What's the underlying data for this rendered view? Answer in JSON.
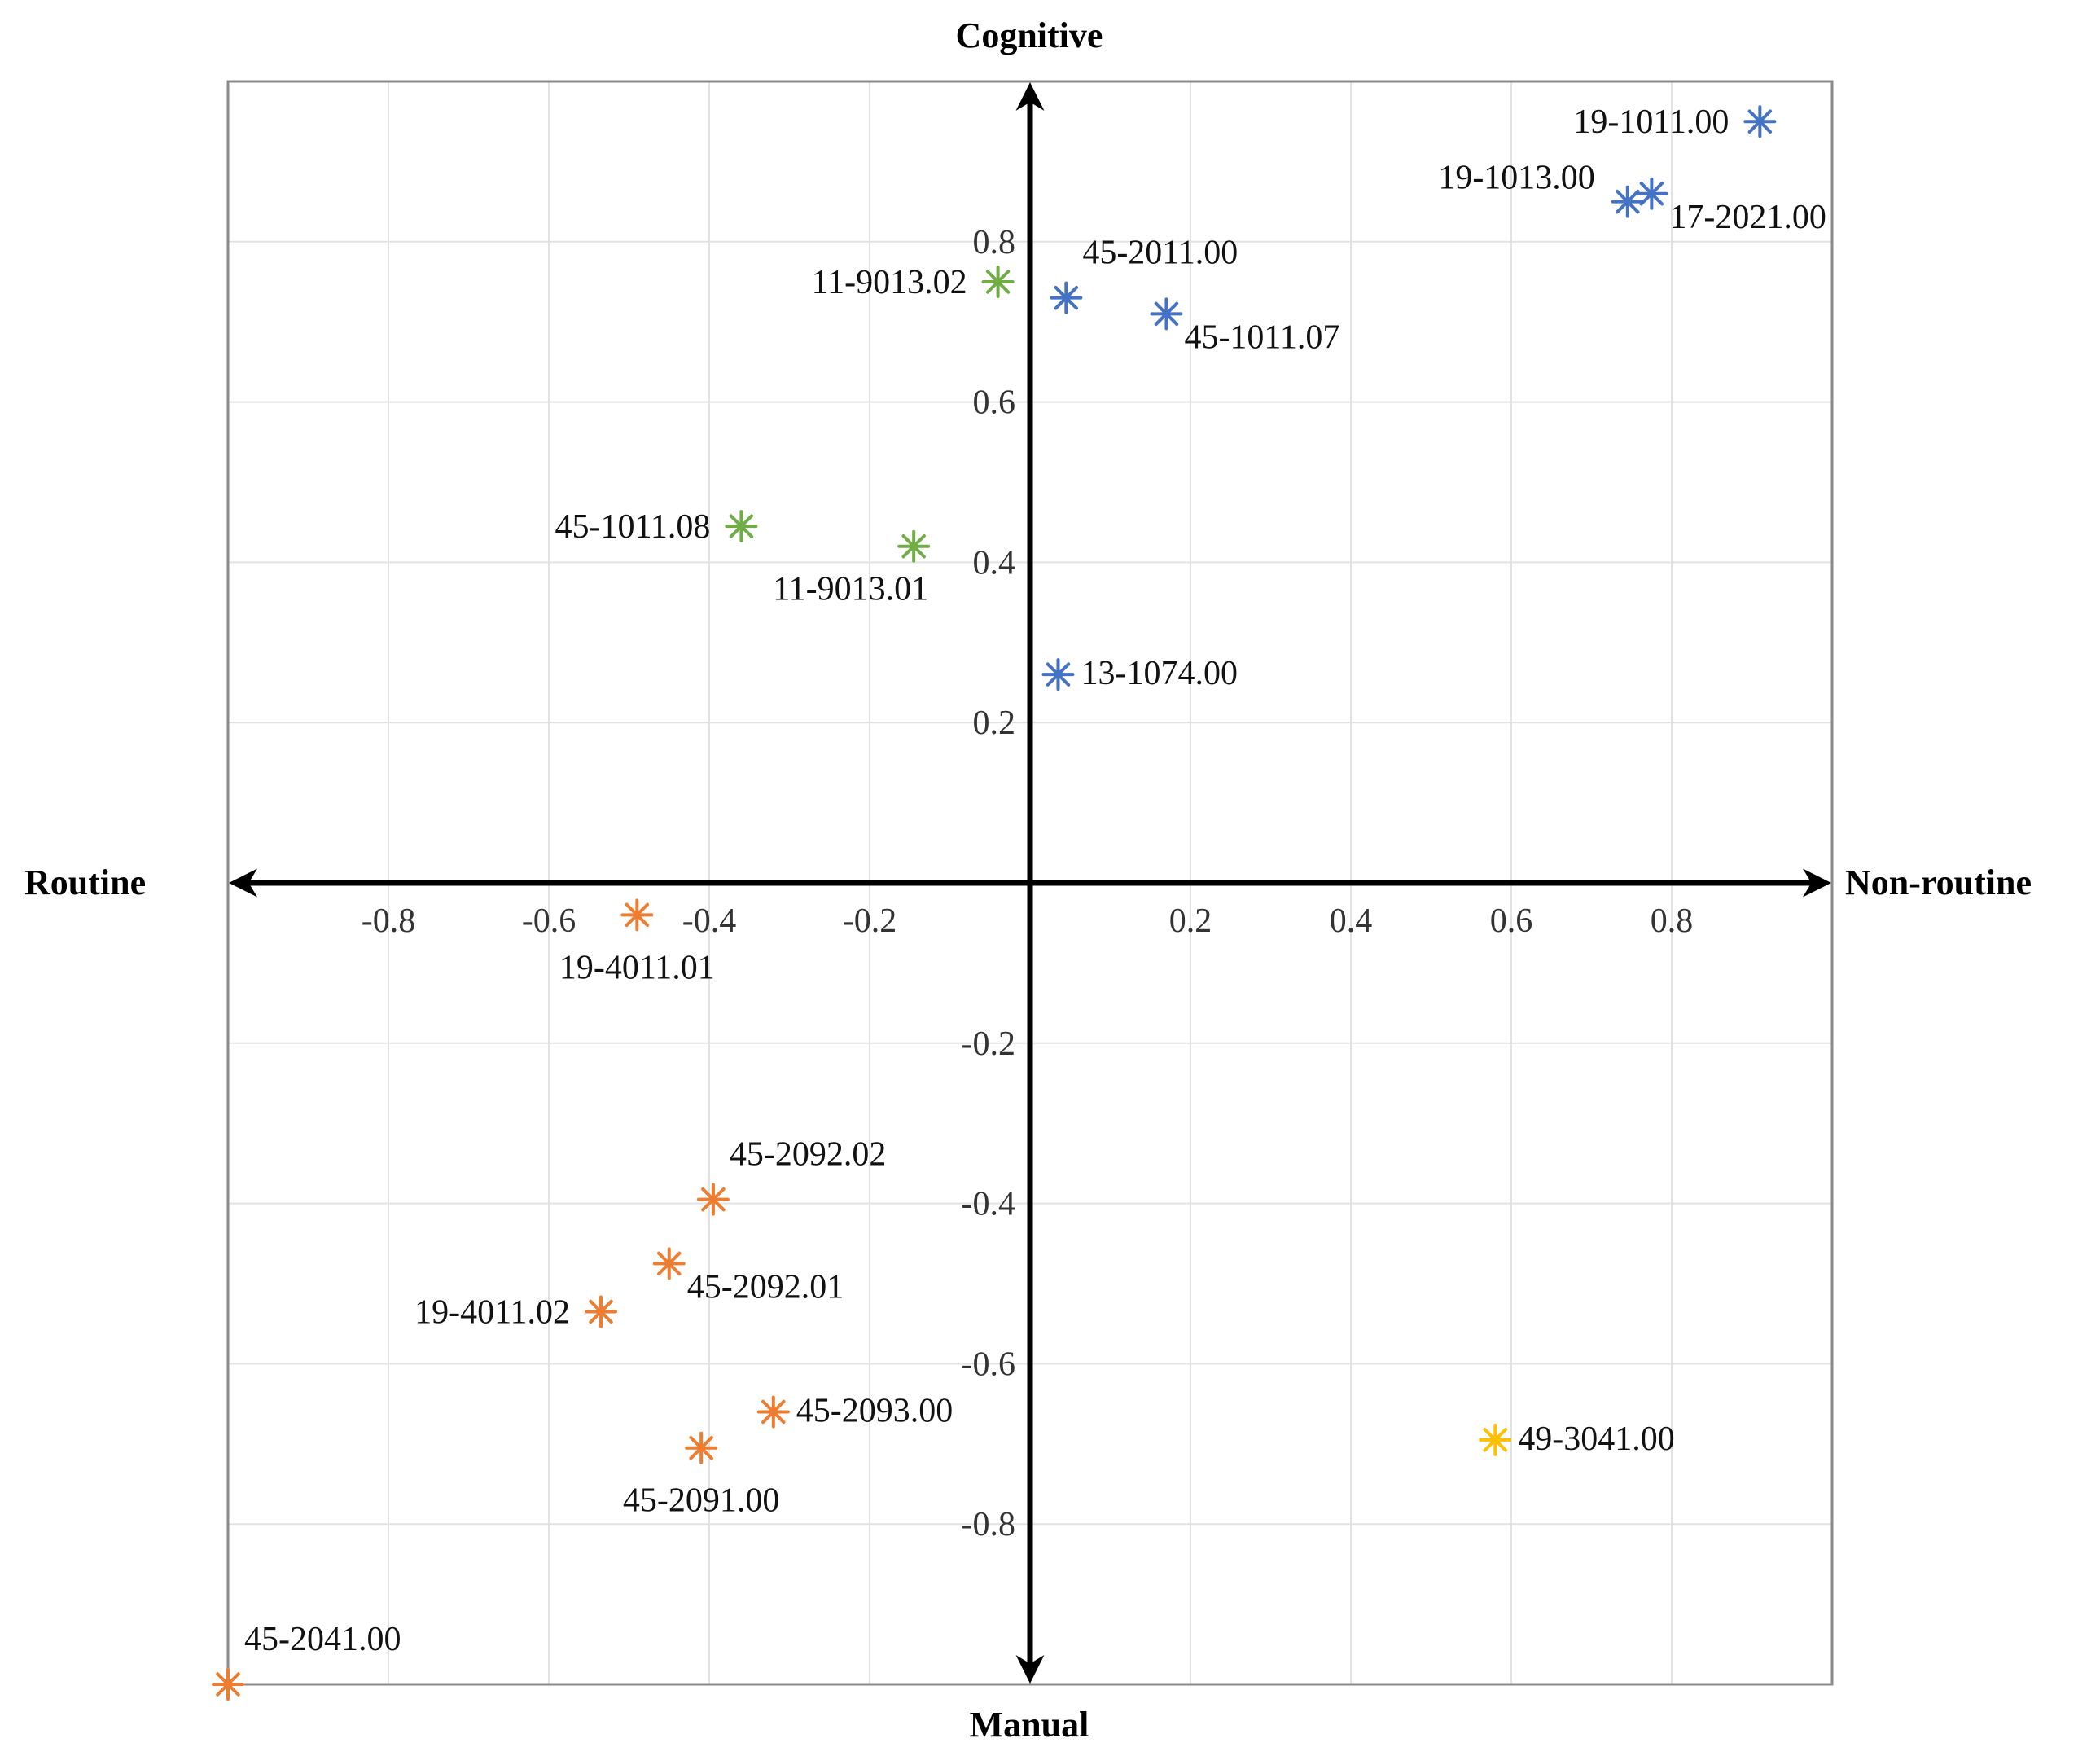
{
  "chart_data": {
    "type": "scatter",
    "title": "",
    "axes": {
      "top": "Cognitive",
      "bottom": "Manual",
      "left": "Routine",
      "right": "Non-routine"
    },
    "xlim": [
      -1.0,
      1.0
    ],
    "ylim": [
      -1.0,
      1.0
    ],
    "grid": true,
    "x_ticks": [
      {
        "value": -0.8,
        "label": "-0.8"
      },
      {
        "value": -0.6,
        "label": "-0.6"
      },
      {
        "value": -0.4,
        "label": "-0.4"
      },
      {
        "value": -0.2,
        "label": "-0.2"
      },
      {
        "value": 0.2,
        "label": "0.2"
      },
      {
        "value": 0.4,
        "label": "0.4"
      },
      {
        "value": 0.6,
        "label": "0.6"
      },
      {
        "value": 0.8,
        "label": "0.8"
      }
    ],
    "y_ticks": [
      {
        "value": 0.8,
        "label": "0.8"
      },
      {
        "value": 0.6,
        "label": "0.6"
      },
      {
        "value": 0.4,
        "label": "0.4"
      },
      {
        "value": 0.2,
        "label": "0.2"
      },
      {
        "value": -0.2,
        "label": "-0.2"
      },
      {
        "value": -0.4,
        "label": "-0.4"
      },
      {
        "value": -0.6,
        "label": "-0.6"
      },
      {
        "value": -0.8,
        "label": "-0.8"
      }
    ],
    "colors": {
      "blue": "#4472C4",
      "green": "#70AD47",
      "orange": "#ED7D31",
      "yellow": "#FFC000"
    },
    "series": [
      {
        "name": "blue",
        "color": "#4472C4",
        "points": [
          {
            "label": "19-1011.00",
            "x": 0.91,
            "y": 0.95,
            "label_pos": "left"
          },
          {
            "label": "19-1013.00",
            "x": 0.745,
            "y": 0.85,
            "label_pos": "upper-left"
          },
          {
            "label": "17-2021.00",
            "x": 0.775,
            "y": 0.86,
            "label_pos": "lower-right"
          },
          {
            "label": "45-2011.00",
            "x": 0.045,
            "y": 0.73,
            "label_pos": "upper-right"
          },
          {
            "label": "45-1011.07",
            "x": 0.17,
            "y": 0.71,
            "label_pos": "lower-right"
          },
          {
            "label": "13-1074.00",
            "x": 0.035,
            "y": 0.26,
            "label_pos": "right"
          }
        ]
      },
      {
        "name": "green",
        "color": "#70AD47",
        "points": [
          {
            "label": "11-9013.02",
            "x": -0.04,
            "y": 0.75,
            "label_pos": "left"
          },
          {
            "label": "45-1011.08",
            "x": -0.36,
            "y": 0.445,
            "label_pos": "left"
          },
          {
            "label": "11-9013.01",
            "x": -0.145,
            "y": 0.42,
            "label_pos": "lower-left"
          }
        ]
      },
      {
        "name": "orange",
        "color": "#ED7D31",
        "points": [
          {
            "label": "19-4011.01",
            "x": -0.49,
            "y": -0.04,
            "label_pos": "below"
          },
          {
            "label": "45-2092.02",
            "x": -0.395,
            "y": -0.395,
            "label_pos": "upper-right"
          },
          {
            "label": "45-2092.01",
            "x": -0.45,
            "y": -0.475,
            "label_pos": "lower-right"
          },
          {
            "label": "19-4011.02",
            "x": -0.535,
            "y": -0.535,
            "label_pos": "left"
          },
          {
            "label": "45-2093.00",
            "x": -0.32,
            "y": -0.66,
            "label_pos": "right"
          },
          {
            "label": "45-2091.00",
            "x": -0.41,
            "y": -0.705,
            "label_pos": "below"
          },
          {
            "label": "45-2041.00",
            "x": -1.0,
            "y": -1.0,
            "label_pos": "upper-right"
          }
        ]
      },
      {
        "name": "yellow",
        "color": "#FFC000",
        "points": [
          {
            "label": "49-3041.00",
            "x": 0.58,
            "y": -0.695,
            "label_pos": "right"
          }
        ]
      }
    ]
  }
}
